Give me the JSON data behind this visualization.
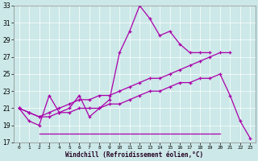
{
  "xlabel": "Windchill (Refroidissement éolien,°C)",
  "xlim": [
    -0.5,
    23.5
  ],
  "ylim": [
    17,
    33
  ],
  "yticks": [
    17,
    19,
    21,
    23,
    25,
    27,
    29,
    31,
    33
  ],
  "xticks": [
    0,
    1,
    2,
    3,
    4,
    5,
    6,
    7,
    8,
    9,
    10,
    11,
    12,
    13,
    14,
    15,
    16,
    17,
    18,
    19,
    20,
    21,
    22,
    23
  ],
  "background_color": "#cce8e8",
  "line_color": "#aa00aa",
  "line1_x": [
    0,
    1,
    2,
    3,
    4,
    5,
    6,
    7,
    8,
    9,
    10,
    11,
    12,
    13,
    14,
    15,
    16,
    17,
    18,
    19
  ],
  "line1_y": [
    21.0,
    19.5,
    19.0,
    22.5,
    20.5,
    21.0,
    22.5,
    20.0,
    21.0,
    22.0,
    27.5,
    30.0,
    33.0,
    31.5,
    29.5,
    30.0,
    28.5,
    27.5,
    27.5,
    27.5
  ],
  "line2_x": [
    0,
    1,
    2,
    3,
    4,
    5,
    6,
    7,
    8,
    9,
    10,
    11,
    12,
    13,
    14,
    15,
    16,
    17,
    18,
    19,
    20,
    21
  ],
  "line2_y": [
    21.0,
    20.5,
    20.0,
    20.5,
    21.0,
    21.5,
    22.0,
    22.0,
    22.5,
    22.5,
    23.0,
    23.5,
    24.0,
    24.5,
    24.5,
    25.0,
    25.5,
    26.0,
    26.5,
    27.0,
    27.5,
    27.5
  ],
  "line3_x": [
    2,
    3,
    4,
    5,
    6,
    7,
    8,
    9,
    10,
    11,
    12,
    13,
    14,
    15,
    16,
    17,
    18,
    19,
    20
  ],
  "line3_y": [
    18.0,
    18.0,
    18.0,
    18.0,
    18.0,
    18.0,
    18.0,
    18.0,
    18.0,
    18.0,
    18.0,
    18.0,
    18.0,
    18.0,
    18.0,
    18.0,
    18.0,
    18.0,
    18.0
  ],
  "line4_x": [
    0,
    1,
    2,
    3,
    4,
    5,
    6,
    7,
    8,
    9,
    10,
    11,
    12,
    13,
    14,
    15,
    16,
    17,
    18,
    19,
    20,
    21,
    22,
    23
  ],
  "line4_y": [
    21.0,
    20.5,
    20.0,
    20.0,
    20.5,
    20.5,
    21.0,
    21.0,
    21.0,
    21.5,
    21.5,
    22.0,
    22.5,
    23.0,
    23.0,
    23.5,
    24.0,
    24.0,
    24.5,
    24.5,
    25.0,
    22.5,
    19.5,
    17.5
  ]
}
